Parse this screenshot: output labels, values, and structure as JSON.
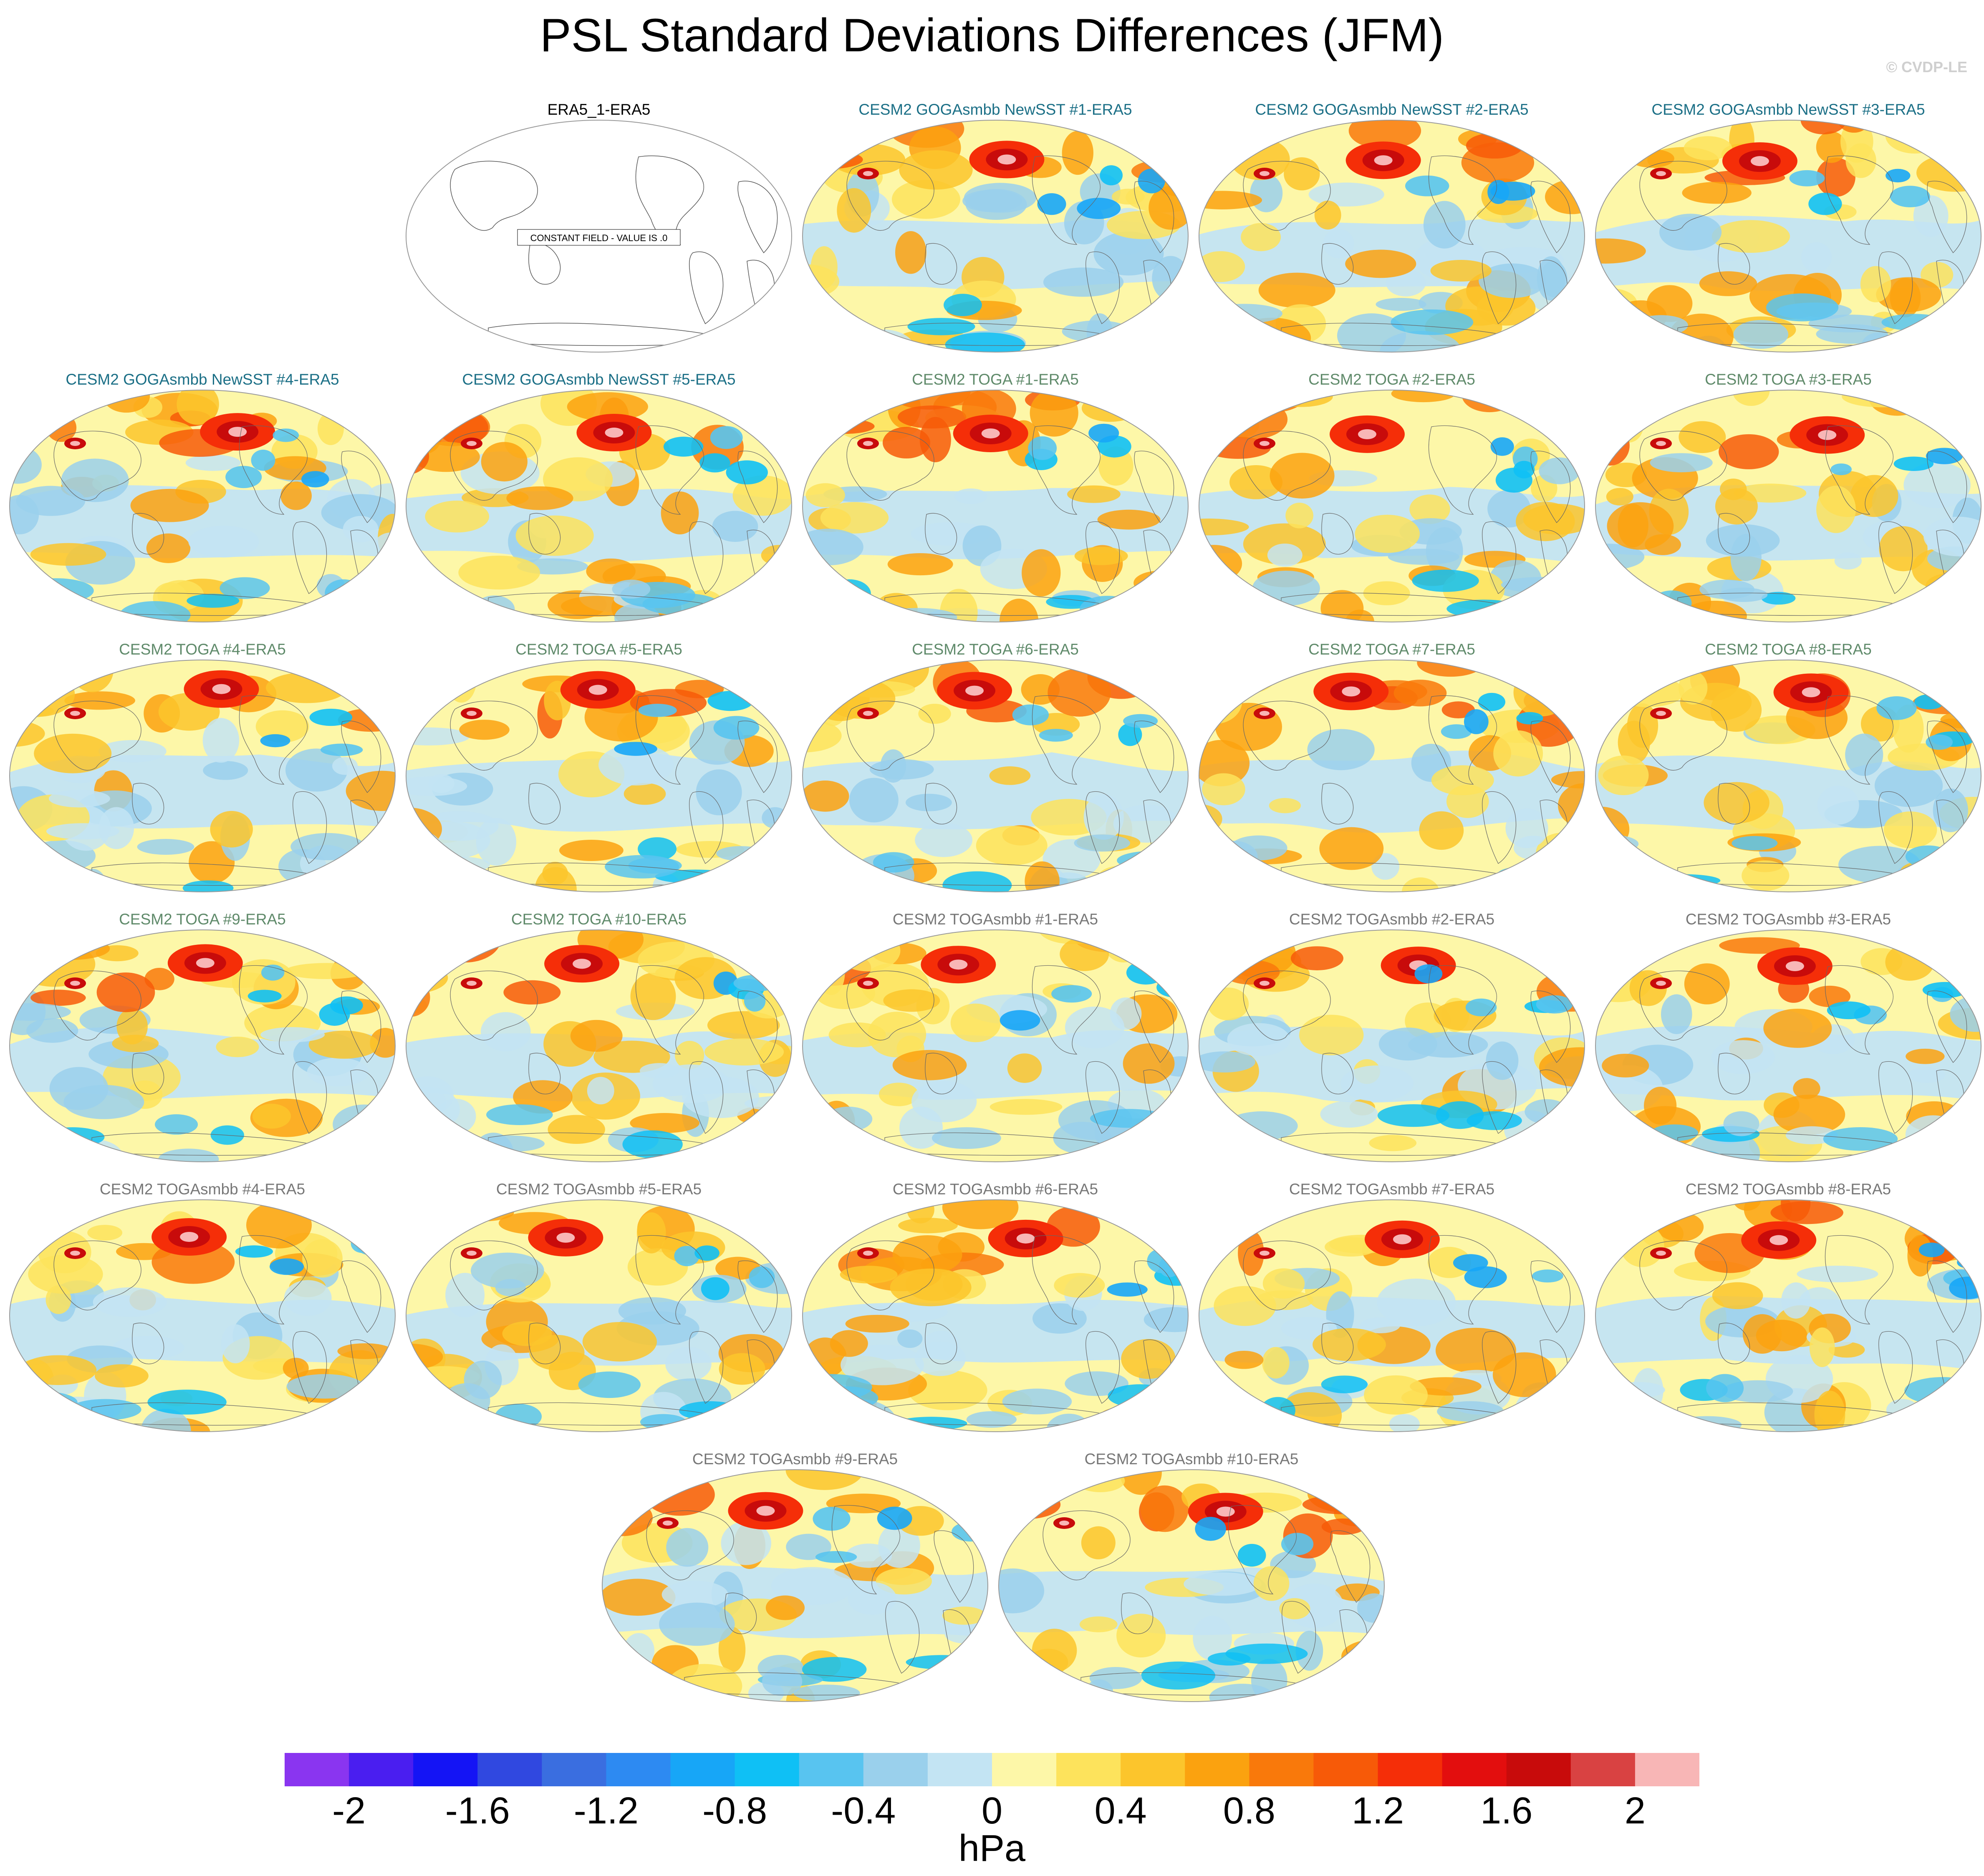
{
  "title": "PSL Standard Deviations Differences (JFM)",
  "credit": "© CVDP-LE",
  "units": "hPa",
  "constant_field_text": "CONSTANT FIELD - VALUE IS .0",
  "colors": {
    "title_black": "#000000",
    "goga": "#1b6f86",
    "toga": "#5f8a6a",
    "togasmbb": "#777777"
  },
  "colorbar": {
    "colors": [
      "#8a35f0",
      "#4a1ef0",
      "#1414f5",
      "#3048e0",
      "#3a6ee0",
      "#2d8af2",
      "#17a6f7",
      "#0fc0f5",
      "#58c4f0",
      "#9ad0ec",
      "#c3e4f3",
      "#fdf7a8",
      "#fde35c",
      "#fcc52c",
      "#fba20f",
      "#f9790b",
      "#f75a08",
      "#f52e08",
      "#e30e0e",
      "#c80b0b",
      "#d94242",
      "#f8b6b6"
    ],
    "tick_labels": [
      "-2",
      "-1.6",
      "-1.2",
      "-0.8",
      "-0.4",
      "0",
      "0.4",
      "0.8",
      "1.2",
      "1.6",
      "2"
    ]
  },
  "panels": [
    {
      "title": "ERA5_1-ERA5",
      "group": "obs",
      "blank": true
    },
    {
      "title": "CESM2 GOGAsmbb NewSST #1-ERA5",
      "group": "goga"
    },
    {
      "title": "CESM2 GOGAsmbb NewSST #2-ERA5",
      "group": "goga"
    },
    {
      "title": "CESM2 GOGAsmbb NewSST #3-ERA5",
      "group": "goga"
    },
    {
      "title": "CESM2 GOGAsmbb NewSST #4-ERA5",
      "group": "goga"
    },
    {
      "title": "CESM2 GOGAsmbb NewSST #5-ERA5",
      "group": "goga"
    },
    {
      "title": "CESM2 TOGA #1-ERA5",
      "group": "toga"
    },
    {
      "title": "CESM2 TOGA #2-ERA5",
      "group": "toga"
    },
    {
      "title": "CESM2 TOGA #3-ERA5",
      "group": "toga"
    },
    {
      "title": "CESM2 TOGA #4-ERA5",
      "group": "toga"
    },
    {
      "title": "CESM2 TOGA #5-ERA5",
      "group": "toga"
    },
    {
      "title": "CESM2 TOGA #6-ERA5",
      "group": "toga"
    },
    {
      "title": "CESM2 TOGA #7-ERA5",
      "group": "toga"
    },
    {
      "title": "CESM2 TOGA #8-ERA5",
      "group": "toga"
    },
    {
      "title": "CESM2 TOGA #9-ERA5",
      "group": "toga"
    },
    {
      "title": "CESM2 TOGA #10-ERA5",
      "group": "toga"
    },
    {
      "title": "CESM2 TOGAsmbb #1-ERA5",
      "group": "togasmbb"
    },
    {
      "title": "CESM2 TOGAsmbb #2-ERA5",
      "group": "togasmbb"
    },
    {
      "title": "CESM2 TOGAsmbb #3-ERA5",
      "group": "togasmbb"
    },
    {
      "title": "CESM2 TOGAsmbb #4-ERA5",
      "group": "togasmbb"
    },
    {
      "title": "CESM2 TOGAsmbb #5-ERA5",
      "group": "togasmbb"
    },
    {
      "title": "CESM2 TOGAsmbb #6-ERA5",
      "group": "togasmbb"
    },
    {
      "title": "CESM2 TOGAsmbb #7-ERA5",
      "group": "togasmbb"
    },
    {
      "title": "CESM2 TOGAsmbb #8-ERA5",
      "group": "togasmbb"
    },
    {
      "title": "CESM2 TOGAsmbb #9-ERA5",
      "group": "togasmbb"
    },
    {
      "title": "CESM2 TOGAsmbb #10-ERA5",
      "group": "togasmbb"
    }
  ]
}
